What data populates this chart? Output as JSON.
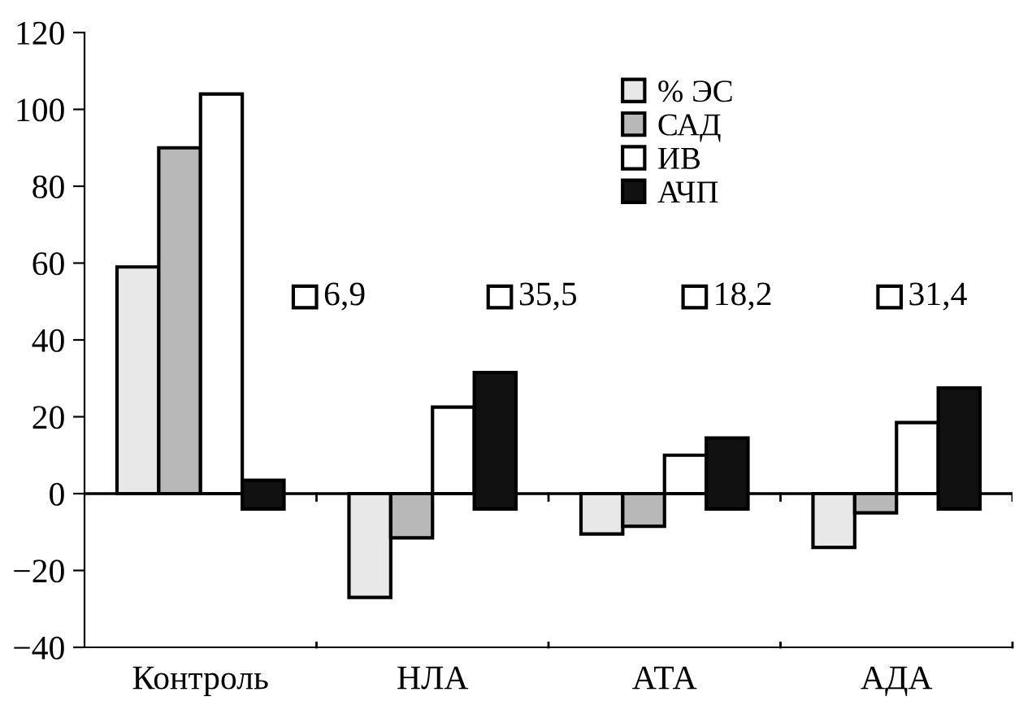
{
  "chart_data": {
    "type": "bar",
    "categories": [
      "Контроль",
      "НЛА",
      "АТА",
      "АДА"
    ],
    "series": [
      {
        "name": "% ЭС",
        "color": "#e8e8e8",
        "values": [
          59,
          -27,
          -10.5,
          -14
        ]
      },
      {
        "name": "САД",
        "color": "#b8b8b8",
        "values": [
          90,
          -11.5,
          -8.5,
          -5
        ]
      },
      {
        "name": "ИВ",
        "color": "#ffffff",
        "values": [
          104,
          22.5,
          10,
          18.5
        ]
      },
      {
        "name": "АЧП",
        "color": "#111111",
        "values": [
          7.5,
          35.5,
          18.5,
          31.5
        ],
        "base": [
          -4,
          -4,
          -4,
          -4
        ]
      }
    ],
    "ylim": [
      -40,
      120
    ],
    "yticks": [
      {
        "value": -40,
        "label": "−40"
      },
      {
        "value": -20,
        "label": "−20"
      },
      0,
      20,
      40,
      60,
      80,
      100,
      120
    ],
    "annotations": [
      "6,9",
      "35,5",
      "18,2",
      "31,4"
    ],
    "legend": "top right"
  }
}
